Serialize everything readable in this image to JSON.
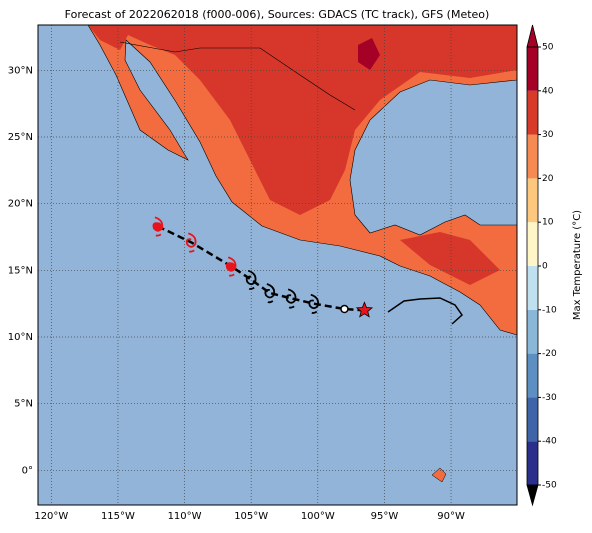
{
  "title": "Forecast of 2022062018 (f000-006), Sources: GDACS (TC track), GFS (Meteo)",
  "map": {
    "xlim": [
      -121,
      -85.05
    ],
    "ylim": [
      -2.6,
      33.4
    ],
    "xticks": [
      {
        "value": -120,
        "label": "120°W"
      },
      {
        "value": -115,
        "label": "115°W"
      },
      {
        "value": -110,
        "label": "110°W"
      },
      {
        "value": -105,
        "label": "105°W"
      },
      {
        "value": -100,
        "label": "100°W"
      },
      {
        "value": -95,
        "label": "95°W"
      },
      {
        "value": -90,
        "label": "90°W"
      }
    ],
    "yticks": [
      {
        "value": 0,
        "label": "0°"
      },
      {
        "value": 5,
        "label": "5°N"
      },
      {
        "value": 10,
        "label": "10°N"
      },
      {
        "value": 15,
        "label": "15°N"
      },
      {
        "value": 20,
        "label": "20°N"
      },
      {
        "value": 25,
        "label": "25°N"
      },
      {
        "value": 30,
        "label": "30°N"
      }
    ]
  },
  "colorbar": {
    "label": "Max Temperature (°C)",
    "lim": [
      -50,
      50
    ],
    "ticks": [
      -50,
      -40,
      -30,
      -20,
      -10,
      0,
      10,
      20,
      30,
      40,
      50
    ],
    "colors": [
      "#2b2f8c",
      "#3f64a8",
      "#5d8fc2",
      "#8ab6d8",
      "#bfe0ee",
      "#fff6c8",
      "#fdc77e",
      "#f68a53",
      "#d83a2a",
      "#a50026"
    ]
  },
  "track": {
    "lon": [
      -96.5,
      -98,
      -100.3,
      -102,
      -103.6,
      -105,
      -106.5,
      -109.5,
      -112
    ],
    "lat": [
      12,
      12.1,
      12.5,
      12.9,
      13.3,
      14.3,
      15.3,
      17.1,
      18.3
    ]
  }
}
